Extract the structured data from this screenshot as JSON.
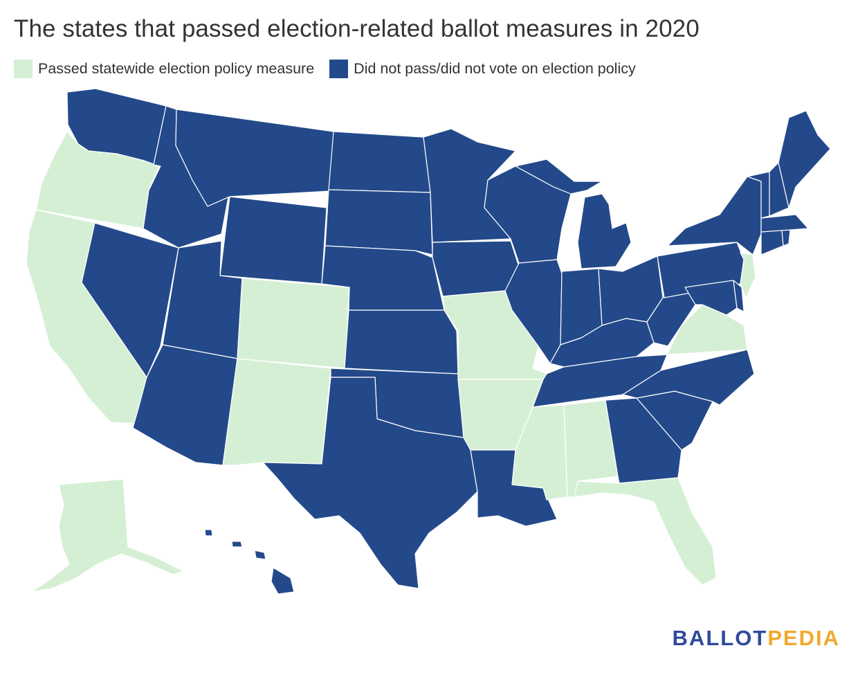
{
  "title": "The states that passed election-related ballot measures in 2020",
  "legend": {
    "passed": {
      "label": "Passed statewide election policy measure",
      "color": "#d5efd4"
    },
    "not_passed": {
      "label": "Did not pass/did not vote on election policy",
      "color": "#23498a"
    }
  },
  "logo": {
    "part1": "BALLOT",
    "part2": "PEDIA"
  },
  "map_data": {
    "passed_states": [
      "Oregon",
      "California",
      "Colorado",
      "New Mexico",
      "Missouri",
      "Arkansas",
      "Mississippi",
      "Alabama",
      "Florida",
      "Virginia",
      "New Jersey",
      "Alaska"
    ],
    "not_passed_states": [
      "Washington",
      "Idaho",
      "Montana",
      "Wyoming",
      "Nevada",
      "Utah",
      "Arizona",
      "North Dakota",
      "South Dakota",
      "Nebraska",
      "Kansas",
      "Oklahoma",
      "Texas",
      "Minnesota",
      "Iowa",
      "Wisconsin",
      "Illinois",
      "Michigan",
      "Indiana",
      "Ohio",
      "Kentucky",
      "Tennessee",
      "Louisiana",
      "Georgia",
      "South Carolina",
      "North Carolina",
      "West Virginia",
      "Pennsylvania",
      "New York",
      "Maryland",
      "Delaware",
      "Connecticut",
      "Rhode Island",
      "Massachusetts",
      "Vermont",
      "New Hampshire",
      "Maine",
      "Hawaii"
    ]
  }
}
